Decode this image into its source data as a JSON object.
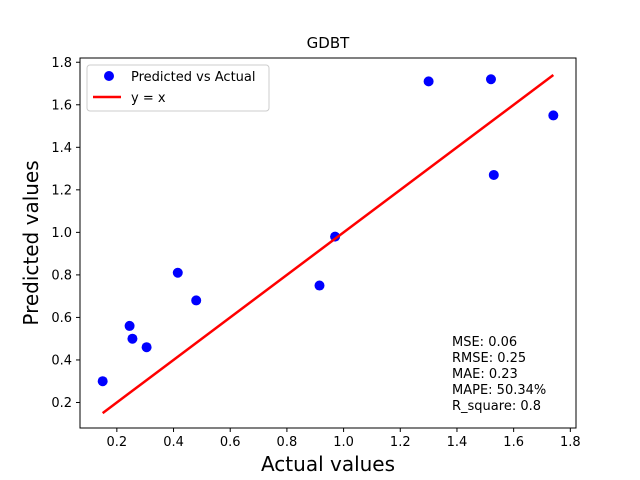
{
  "chart_data": {
    "type": "scatter",
    "title": "GDBT",
    "xlabel": "Actual values",
    "ylabel": "Predicted values",
    "xlim": [
      0.07,
      1.82
    ],
    "ylim": [
      0.08,
      1.82
    ],
    "xticks": [
      0.2,
      0.4,
      0.6,
      0.8,
      1.0,
      1.2,
      1.4,
      1.6,
      1.8
    ],
    "yticks": [
      0.2,
      0.4,
      0.6,
      0.8,
      1.0,
      1.2,
      1.4,
      1.6,
      1.8
    ],
    "tick_labels_x": [
      "0.2",
      "0.4",
      "0.6",
      "0.8",
      "1.0",
      "1.2",
      "1.4",
      "1.6",
      "1.8"
    ],
    "tick_labels_y": [
      "0.2",
      "0.4",
      "0.6",
      "0.8",
      "1.0",
      "1.2",
      "1.4",
      "1.6",
      "1.8"
    ],
    "grid": false,
    "legend_position": "top-left",
    "series": [
      {
        "name": "Predicted vs Actual",
        "kind": "scatter",
        "color": "#0000ff",
        "points": [
          {
            "x": 0.15,
            "y": 0.3
          },
          {
            "x": 0.245,
            "y": 0.56
          },
          {
            "x": 0.255,
            "y": 0.5
          },
          {
            "x": 0.305,
            "y": 0.46
          },
          {
            "x": 0.415,
            "y": 0.81
          },
          {
            "x": 0.48,
            "y": 0.68
          },
          {
            "x": 0.915,
            "y": 0.75
          },
          {
            "x": 0.97,
            "y": 0.98
          },
          {
            "x": 1.3,
            "y": 1.71
          },
          {
            "x": 1.52,
            "y": 1.72
          },
          {
            "x": 1.53,
            "y": 1.27
          },
          {
            "x": 1.74,
            "y": 1.55
          }
        ]
      },
      {
        "name": "y = x",
        "kind": "line",
        "color": "#ff0000",
        "points": [
          {
            "x": 0.15,
            "y": 0.15
          },
          {
            "x": 1.74,
            "y": 1.74
          }
        ]
      }
    ],
    "annotations": [
      "MSE: 0.06",
      "RMSE: 0.25",
      "MAE: 0.23",
      "MAPE: 50.34%",
      "R_square: 0.8"
    ]
  }
}
